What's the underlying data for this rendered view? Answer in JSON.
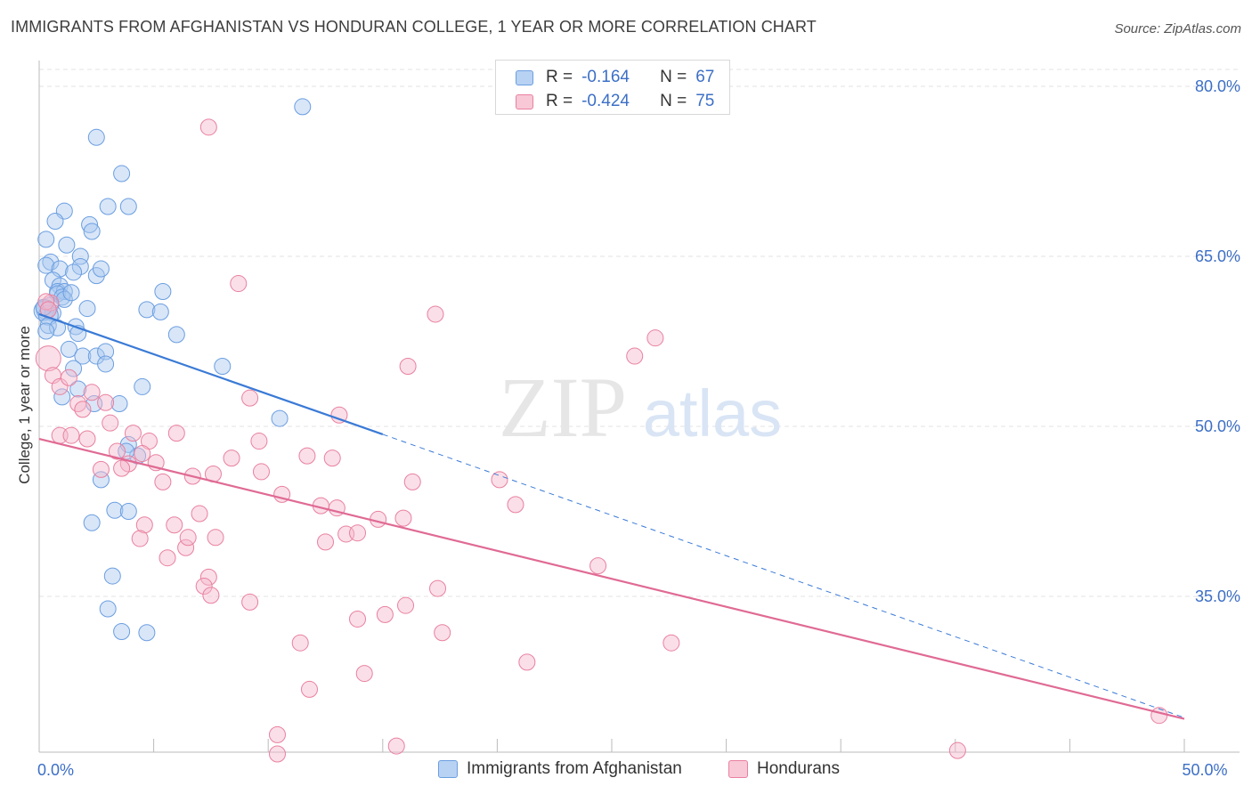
{
  "title": "IMMIGRANTS FROM AFGHANISTAN VS HONDURAN COLLEGE, 1 YEAR OR MORE CORRELATION CHART",
  "source": "Source: ZipAtlas.com",
  "watermark": {
    "zip": "ZIP",
    "atlas": "atlas"
  },
  "colors": {
    "blue_fill": "#a8c8f0",
    "blue_stroke": "#6b9ee0",
    "blue_line": "#3a7ad6",
    "pink_fill": "#f5b8cc",
    "pink_stroke": "#e9809f",
    "pink_line": "#e06a94",
    "axis_label": "#3c6fc6",
    "grid": "#e3e3e3"
  },
  "legend_top": {
    "rows": [
      {
        "r_label": "R =",
        "r_value": "-0.164",
        "n_label": "N =",
        "n_value": "67",
        "series": "blue"
      },
      {
        "r_label": "R =",
        "r_value": "-0.424",
        "n_label": "N =",
        "n_value": "75",
        "series": "pink"
      }
    ]
  },
  "legend_bottom": {
    "items": [
      {
        "label": "Immigrants from Afghanistan",
        "series": "blue"
      },
      {
        "label": "Hondurans",
        "series": "pink"
      }
    ]
  },
  "chart_data": {
    "type": "scatter",
    "title": "IMMIGRANTS FROM AFGHANISTAN VS HONDURAN COLLEGE, 1 YEAR OR MORE CORRELATION CHART",
    "xlabel": "",
    "ylabel": "College, 1 year or more",
    "xlim": [
      0,
      50
    ],
    "ylim": [
      20.6,
      82.3
    ],
    "x_tick_labels": [
      {
        "value": 0,
        "label": "0.0%"
      },
      {
        "value": 50,
        "label": "50.0%"
      }
    ],
    "x_minor_ticks": [
      5,
      10,
      15,
      20,
      25,
      30,
      35,
      40,
      45,
      50
    ],
    "y_ticks": [
      {
        "value": 80,
        "label": "80.0%"
      },
      {
        "value": 65,
        "label": "65.0%"
      },
      {
        "value": 50,
        "label": "50.0%"
      },
      {
        "value": 35,
        "label": "35.0%"
      }
    ],
    "grid": true,
    "legend_position": "top-center",
    "series": [
      {
        "name": "Immigrants from Afghanistan",
        "color": "blue",
        "r": -0.164,
        "n": 67,
        "trend": {
          "x0": 0,
          "y0": 59.9,
          "x1": 15,
          "y1": 49.3,
          "dashed_to_x": 50,
          "dashed_to_y": 24.3
        },
        "points": [
          [
            0.3,
            66.5
          ],
          [
            0.5,
            64.5
          ],
          [
            0.3,
            64.2
          ],
          [
            0.9,
            63.9
          ],
          [
            0.6,
            62.9
          ],
          [
            0.9,
            62.4
          ],
          [
            0.8,
            61.9
          ],
          [
            1.1,
            61.9
          ],
          [
            0.8,
            61.7
          ],
          [
            1.0,
            61.4
          ],
          [
            1.1,
            61.2
          ],
          [
            0.5,
            60.7
          ],
          [
            0.3,
            60.3
          ],
          [
            0.2,
            60.2
          ],
          [
            0.6,
            60.0
          ],
          [
            0.4,
            59.8
          ],
          [
            0.4,
            58.9
          ],
          [
            0.8,
            58.7
          ],
          [
            0.3,
            58.4
          ],
          [
            1.1,
            69.0
          ],
          [
            0.7,
            68.1
          ],
          [
            1.2,
            66.0
          ],
          [
            1.8,
            65.0
          ],
          [
            1.8,
            64.1
          ],
          [
            1.5,
            63.6
          ],
          [
            2.5,
            63.3
          ],
          [
            2.7,
            63.9
          ],
          [
            1.4,
            61.8
          ],
          [
            2.1,
            60.4
          ],
          [
            1.6,
            58.8
          ],
          [
            1.7,
            58.2
          ],
          [
            1.3,
            56.8
          ],
          [
            1.9,
            56.2
          ],
          [
            2.5,
            56.2
          ],
          [
            2.9,
            56.6
          ],
          [
            2.9,
            55.5
          ],
          [
            1.5,
            55.1
          ],
          [
            1.7,
            53.3
          ],
          [
            1.0,
            52.6
          ],
          [
            2.4,
            52.0
          ],
          [
            3.5,
            52.0
          ],
          [
            2.2,
            67.8
          ],
          [
            2.3,
            67.2
          ],
          [
            3.0,
            69.4
          ],
          [
            3.9,
            69.4
          ],
          [
            3.6,
            72.3
          ],
          [
            2.5,
            75.5
          ],
          [
            11.5,
            78.2
          ],
          [
            4.7,
            60.3
          ],
          [
            5.3,
            60.1
          ],
          [
            5.4,
            61.9
          ],
          [
            6.0,
            58.1
          ],
          [
            8.0,
            55.3
          ],
          [
            4.5,
            53.5
          ],
          [
            10.5,
            50.7
          ],
          [
            3.9,
            48.4
          ],
          [
            4.3,
            47.4
          ],
          [
            3.8,
            47.8
          ],
          [
            2.7,
            45.3
          ],
          [
            3.3,
            42.6
          ],
          [
            3.9,
            42.5
          ],
          [
            2.3,
            41.5
          ],
          [
            3.2,
            36.8
          ],
          [
            3.0,
            33.9
          ],
          [
            3.6,
            31.9
          ],
          [
            4.7,
            31.8
          ],
          [
            0.2,
            60.5
          ]
        ]
      },
      {
        "name": "Hondurans",
        "color": "pink",
        "r": -0.424,
        "n": 75,
        "trend": {
          "x0": 0,
          "y0": 48.9,
          "x1": 50,
          "y1": 24.2
        },
        "points": [
          [
            0.4,
            56.0
          ],
          [
            0.6,
            54.5
          ],
          [
            0.9,
            53.5
          ],
          [
            1.3,
            54.3
          ],
          [
            0.5,
            60.9
          ],
          [
            0.3,
            61.0
          ],
          [
            0.4,
            60.3
          ],
          [
            0.9,
            49.2
          ],
          [
            2.3,
            53.0
          ],
          [
            1.7,
            52.0
          ],
          [
            1.9,
            51.5
          ],
          [
            2.9,
            52.1
          ],
          [
            3.1,
            50.3
          ],
          [
            1.4,
            49.2
          ],
          [
            2.1,
            48.9
          ],
          [
            3.4,
            47.8
          ],
          [
            4.1,
            49.4
          ],
          [
            3.9,
            46.7
          ],
          [
            4.8,
            48.7
          ],
          [
            2.7,
            46.2
          ],
          [
            3.6,
            46.3
          ],
          [
            4.5,
            47.6
          ],
          [
            5.1,
            46.8
          ],
          [
            5.4,
            45.1
          ],
          [
            6.0,
            49.4
          ],
          [
            6.7,
            45.6
          ],
          [
            7.0,
            42.3
          ],
          [
            5.9,
            41.3
          ],
          [
            4.6,
            41.3
          ],
          [
            4.4,
            40.1
          ],
          [
            6.4,
            39.3
          ],
          [
            6.5,
            40.2
          ],
          [
            5.6,
            38.4
          ],
          [
            7.6,
            45.8
          ],
          [
            8.4,
            47.2
          ],
          [
            9.6,
            48.7
          ],
          [
            9.7,
            46.0
          ],
          [
            10.6,
            44.0
          ],
          [
            11.7,
            47.4
          ],
          [
            12.8,
            47.2
          ],
          [
            12.3,
            43.0
          ],
          [
            13.0,
            42.8
          ],
          [
            12.5,
            39.8
          ],
          [
            13.4,
            40.5
          ],
          [
            13.9,
            40.6
          ],
          [
            14.8,
            41.8
          ],
          [
            15.9,
            41.9
          ],
          [
            16.3,
            45.1
          ],
          [
            16.1,
            55.3
          ],
          [
            17.3,
            59.9
          ],
          [
            17.4,
            35.7
          ],
          [
            17.6,
            31.8
          ],
          [
            20.1,
            45.3
          ],
          [
            20.8,
            43.1
          ],
          [
            24.4,
            37.7
          ],
          [
            26.0,
            56.2
          ],
          [
            26.9,
            57.8
          ],
          [
            27.6,
            30.9
          ],
          [
            13.1,
            51.0
          ],
          [
            9.2,
            52.5
          ],
          [
            8.7,
            62.6
          ],
          [
            7.4,
            76.4
          ],
          [
            7.4,
            36.7
          ],
          [
            7.2,
            35.9
          ],
          [
            7.7,
            40.2
          ],
          [
            7.5,
            35.1
          ],
          [
            9.2,
            34.5
          ],
          [
            11.4,
            30.9
          ],
          [
            11.8,
            26.8
          ],
          [
            15.1,
            33.4
          ],
          [
            16.0,
            34.2
          ],
          [
            13.9,
            33.0
          ],
          [
            14.2,
            28.2
          ],
          [
            21.3,
            29.2
          ],
          [
            48.9,
            24.5
          ]
        ],
        "points_extra": [
          [
            10.4,
            22.8
          ],
          [
            10.4,
            21.1
          ],
          [
            15.6,
            21.8
          ],
          [
            40.1,
            21.4
          ]
        ]
      }
    ]
  }
}
